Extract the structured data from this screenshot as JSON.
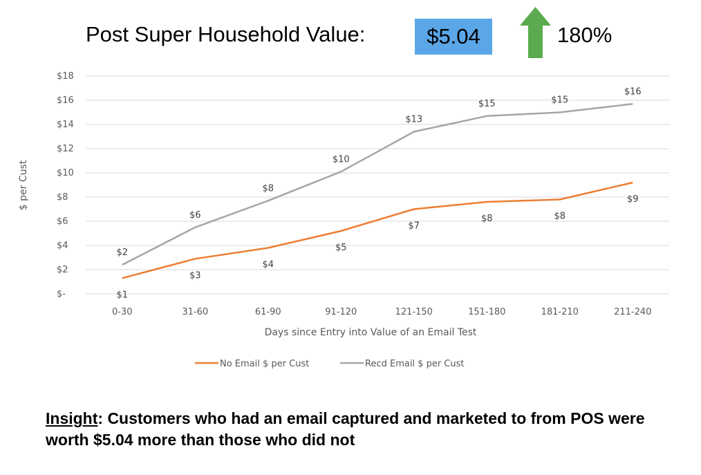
{
  "header": {
    "title": "Post Super Household Value:",
    "value": "$5.04",
    "change_pct": "180%",
    "arrow_icon": "up-arrow-icon",
    "value_box_color": "#5BA6E6",
    "arrow_color": "#5CAA4F"
  },
  "chart_data": {
    "type": "line",
    "categories": [
      "0-30",
      "31-60",
      "61-90",
      "91-120",
      "121-150",
      "151-180",
      "181-210",
      "211-240"
    ],
    "series": [
      {
        "name": "No Email $ per Cust",
        "color": "#ED7D31",
        "values": [
          1.3,
          2.9,
          3.8,
          5.2,
          7.0,
          7.6,
          7.8,
          9.2
        ],
        "labels": [
          "$1",
          "$3",
          "$4",
          "$5",
          "$7",
          "$8",
          "$8",
          "$9"
        ],
        "label_position": "below"
      },
      {
        "name": "Recd Email $ per Cust",
        "color": "#A5A5A5",
        "values": [
          2.4,
          5.5,
          7.7,
          10.1,
          13.4,
          14.7,
          15.0,
          15.7
        ],
        "labels": [
          "$2",
          "$6",
          "$8",
          "$10",
          "$13",
          "$15",
          "$15",
          "$16"
        ],
        "label_position": "above"
      }
    ],
    "xlabel": "Days since Entry into Value of an Email Test",
    "ylabel": "$ per Cust",
    "ylim": [
      0,
      18
    ],
    "yticks": [
      0,
      2,
      4,
      6,
      8,
      10,
      12,
      14,
      16,
      18
    ],
    "ytick_labels": [
      "$-",
      "$2",
      "$4",
      "$6",
      "$8",
      "$10",
      "$12",
      "$14",
      "$16",
      "$18"
    ],
    "grid": true,
    "legend": "bottom"
  },
  "insight": {
    "label": "Insight",
    "text": ": Customers who had an email captured and marketed to from POS were worth $5.04 more than those who did not"
  }
}
